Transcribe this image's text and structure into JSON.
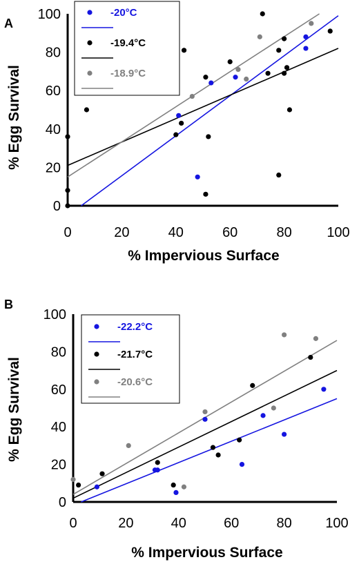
{
  "chart_data": [
    {
      "type": "scatter",
      "panel_label": "A",
      "xlabel": "% Impervious Surface",
      "ylabel": "% Egg Survival",
      "xlim": [
        0,
        100
      ],
      "ylim": [
        0,
        100
      ],
      "xticks": [
        0,
        20,
        40,
        60,
        80,
        100
      ],
      "yticks": [
        0,
        20,
        40,
        60,
        80,
        100
      ],
      "grid": false,
      "legend_position": "top-left",
      "series": [
        {
          "name": "-20°C",
          "color": "#1515e0",
          "points": [
            [
              41,
              47
            ],
            [
              48,
              15
            ],
            [
              53,
              64
            ],
            [
              62,
              67
            ],
            [
              88,
              88
            ],
            [
              88,
              82
            ]
          ],
          "fit": [
            [
              5,
              0
            ],
            [
              100,
              99
            ]
          ]
        },
        {
          "name": "-19.4°C",
          "color": "#000000",
          "points": [
            [
              0,
              36
            ],
            [
              0,
              8
            ],
            [
              0,
              0
            ],
            [
              7,
              50
            ],
            [
              40,
              37
            ],
            [
              42,
              43
            ],
            [
              43,
              81
            ],
            [
              51,
              67
            ],
            [
              52,
              36
            ],
            [
              51,
              6
            ],
            [
              60,
              75
            ],
            [
              72,
              100
            ],
            [
              74,
              69
            ],
            [
              78,
              81
            ],
            [
              80,
              87
            ],
            [
              80,
              69
            ],
            [
              81,
              72
            ],
            [
              82,
              50
            ],
            [
              78,
              16
            ],
            [
              97,
              91
            ]
          ],
          "fit": [
            [
              0,
              21
            ],
            [
              100,
              82
            ]
          ]
        },
        {
          "name": "-18.9°C",
          "color": "#808080",
          "points": [
            [
              46,
              57
            ],
            [
              63,
              71
            ],
            [
              66,
              66
            ],
            [
              71,
              88
            ],
            [
              90,
              95
            ]
          ],
          "fit": [
            [
              0,
              15
            ],
            [
              93,
              100
            ]
          ]
        }
      ]
    },
    {
      "type": "scatter",
      "panel_label": "B",
      "xlabel": "% Impervious Surface",
      "ylabel": "% Egg Survival",
      "xlim": [
        0,
        100
      ],
      "ylim": [
        0,
        100
      ],
      "xticks": [
        0,
        20,
        40,
        60,
        80,
        100
      ],
      "yticks": [
        0,
        20,
        40,
        60,
        80,
        100
      ],
      "grid": false,
      "legend_position": "top-left",
      "series": [
        {
          "name": "-22.2°C",
          "color": "#1515e0",
          "points": [
            [
              9,
              8
            ],
            [
              31,
              17
            ],
            [
              32,
              17
            ],
            [
              39,
              5
            ],
            [
              50,
              44
            ],
            [
              64,
              20
            ],
            [
              72,
              46
            ],
            [
              80,
              36
            ],
            [
              95,
              60
            ]
          ],
          "fit": [
            [
              3,
              0
            ],
            [
              100,
              55
            ]
          ]
        },
        {
          "name": "-21.7°C",
          "color": "#000000",
          "points": [
            [
              2,
              9
            ],
            [
              11,
              15
            ],
            [
              32,
              21
            ],
            [
              38,
              9
            ],
            [
              53,
              29
            ],
            [
              55,
              25
            ],
            [
              63,
              33
            ],
            [
              68,
              62
            ],
            [
              90,
              77
            ]
          ],
          "fit": [
            [
              0,
              2
            ],
            [
              100,
              70
            ]
          ]
        },
        {
          "name": "-20.6°C",
          "color": "#808080",
          "points": [
            [
              0,
              12
            ],
            [
              21,
              30
            ],
            [
              42,
              8
            ],
            [
              50,
              48
            ],
            [
              76,
              50
            ],
            [
              80,
              89
            ],
            [
              92,
              87
            ]
          ],
          "fit": [
            [
              0,
              4
            ],
            [
              100,
              86
            ]
          ]
        }
      ]
    }
  ]
}
